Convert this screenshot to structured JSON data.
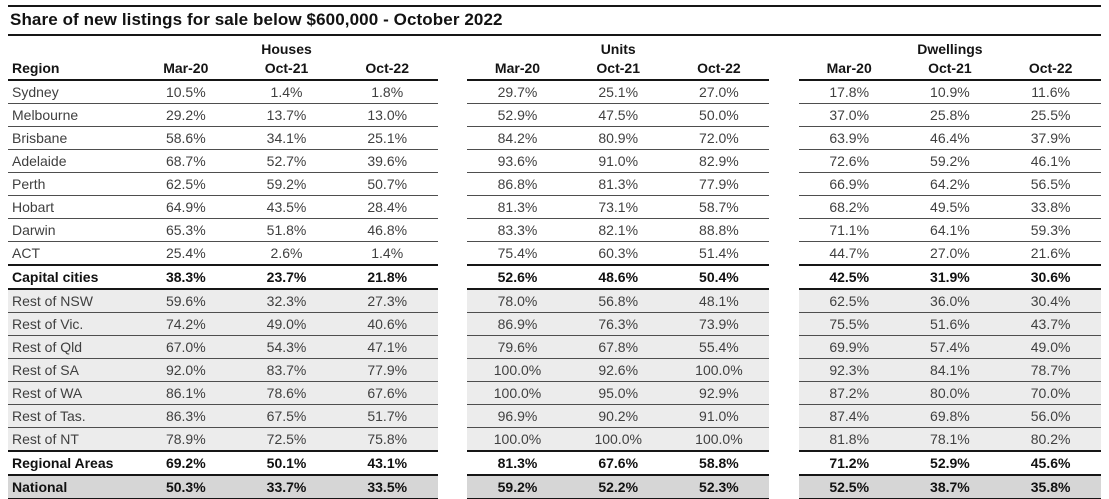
{
  "title": "Share of new listings for sale below $600,000 - October 2022",
  "table": {
    "region_header": "Region",
    "group_labels": [
      "Houses",
      "Units",
      "Dwellings"
    ],
    "sub_columns": [
      "Mar-20",
      "Oct-21",
      "Oct-22"
    ]
  },
  "colors": {
    "stripe_row_bg": "#ececec",
    "national_row_bg": "#d6d6d6",
    "rule_strong": "#161616",
    "rule_thin": "#4e4e4e",
    "text": "#3f3f3f",
    "text_bold": "#111111"
  },
  "chart_data": {
    "type": "table",
    "title": "Share of new listings for sale below $600,000 - October 2022",
    "column_groups": [
      "Houses",
      "Units",
      "Dwellings"
    ],
    "columns": [
      "Mar-20",
      "Oct-21",
      "Oct-22"
    ],
    "unit": "percent",
    "rows": [
      {
        "region": "Sydney",
        "kind": "city",
        "houses": [
          10.5,
          1.4,
          1.8
        ],
        "units": [
          29.7,
          25.1,
          27.0
        ],
        "dwellings": [
          17.8,
          10.9,
          11.6
        ]
      },
      {
        "region": "Melbourne",
        "kind": "city",
        "houses": [
          29.2,
          13.7,
          13.0
        ],
        "units": [
          52.9,
          47.5,
          50.0
        ],
        "dwellings": [
          37.0,
          25.8,
          25.5
        ]
      },
      {
        "region": "Brisbane",
        "kind": "city",
        "houses": [
          58.6,
          34.1,
          25.1
        ],
        "units": [
          84.2,
          80.9,
          72.0
        ],
        "dwellings": [
          63.9,
          46.4,
          37.9
        ]
      },
      {
        "region": "Adelaide",
        "kind": "city",
        "houses": [
          68.7,
          52.7,
          39.6
        ],
        "units": [
          93.6,
          91.0,
          82.9
        ],
        "dwellings": [
          72.6,
          59.2,
          46.1
        ]
      },
      {
        "region": "Perth",
        "kind": "city",
        "houses": [
          62.5,
          59.2,
          50.7
        ],
        "units": [
          86.8,
          81.3,
          77.9
        ],
        "dwellings": [
          66.9,
          64.2,
          56.5
        ]
      },
      {
        "region": "Hobart",
        "kind": "city",
        "houses": [
          64.9,
          43.5,
          28.4
        ],
        "units": [
          81.3,
          73.1,
          58.7
        ],
        "dwellings": [
          68.2,
          49.5,
          33.8
        ]
      },
      {
        "region": "Darwin",
        "kind": "city",
        "houses": [
          65.3,
          51.8,
          46.8
        ],
        "units": [
          83.3,
          82.1,
          88.8
        ],
        "dwellings": [
          71.1,
          64.1,
          59.3
        ]
      },
      {
        "region": "ACT",
        "kind": "city",
        "houses": [
          25.4,
          2.6,
          1.4
        ],
        "units": [
          75.4,
          60.3,
          51.4
        ],
        "dwellings": [
          44.7,
          27.0,
          21.6
        ]
      },
      {
        "region": "Capital cities",
        "kind": "capital-total",
        "houses": [
          38.3,
          23.7,
          21.8
        ],
        "units": [
          52.6,
          48.6,
          50.4
        ],
        "dwellings": [
          42.5,
          31.9,
          30.6
        ]
      },
      {
        "region": "Rest of NSW",
        "kind": "regional",
        "houses": [
          59.6,
          32.3,
          27.3
        ],
        "units": [
          78.0,
          56.8,
          48.1
        ],
        "dwellings": [
          62.5,
          36.0,
          30.4
        ]
      },
      {
        "region": "Rest of Vic.",
        "kind": "regional",
        "houses": [
          74.2,
          49.0,
          40.6
        ],
        "units": [
          86.9,
          76.3,
          73.9
        ],
        "dwellings": [
          75.5,
          51.6,
          43.7
        ]
      },
      {
        "region": "Rest of Qld",
        "kind": "regional",
        "houses": [
          67.0,
          54.3,
          47.1
        ],
        "units": [
          79.6,
          67.8,
          55.4
        ],
        "dwellings": [
          69.9,
          57.4,
          49.0
        ]
      },
      {
        "region": "Rest of SA",
        "kind": "regional",
        "houses": [
          92.0,
          83.7,
          77.9
        ],
        "units": [
          100.0,
          92.6,
          100.0
        ],
        "dwellings": [
          92.3,
          84.1,
          78.7
        ]
      },
      {
        "region": "Rest of WA",
        "kind": "regional",
        "houses": [
          86.1,
          78.6,
          67.6
        ],
        "units": [
          100.0,
          95.0,
          92.9
        ],
        "dwellings": [
          87.2,
          80.0,
          70.0
        ]
      },
      {
        "region": "Rest of Tas.",
        "kind": "regional",
        "houses": [
          86.3,
          67.5,
          51.7
        ],
        "units": [
          96.9,
          90.2,
          91.0
        ],
        "dwellings": [
          87.4,
          69.8,
          56.0
        ]
      },
      {
        "region": "Rest of NT",
        "kind": "regional",
        "houses": [
          78.9,
          72.5,
          75.8
        ],
        "units": [
          100.0,
          100.0,
          100.0
        ],
        "dwellings": [
          81.8,
          78.1,
          80.2
        ]
      },
      {
        "region": "Regional Areas",
        "kind": "regional-total",
        "houses": [
          69.2,
          50.1,
          43.1
        ],
        "units": [
          81.3,
          67.6,
          58.8
        ],
        "dwellings": [
          71.2,
          52.9,
          45.6
        ]
      },
      {
        "region": "National",
        "kind": "national",
        "houses": [
          50.3,
          33.7,
          33.5
        ],
        "units": [
          59.2,
          52.2,
          52.3
        ],
        "dwellings": [
          52.5,
          38.7,
          35.8
        ]
      }
    ]
  }
}
